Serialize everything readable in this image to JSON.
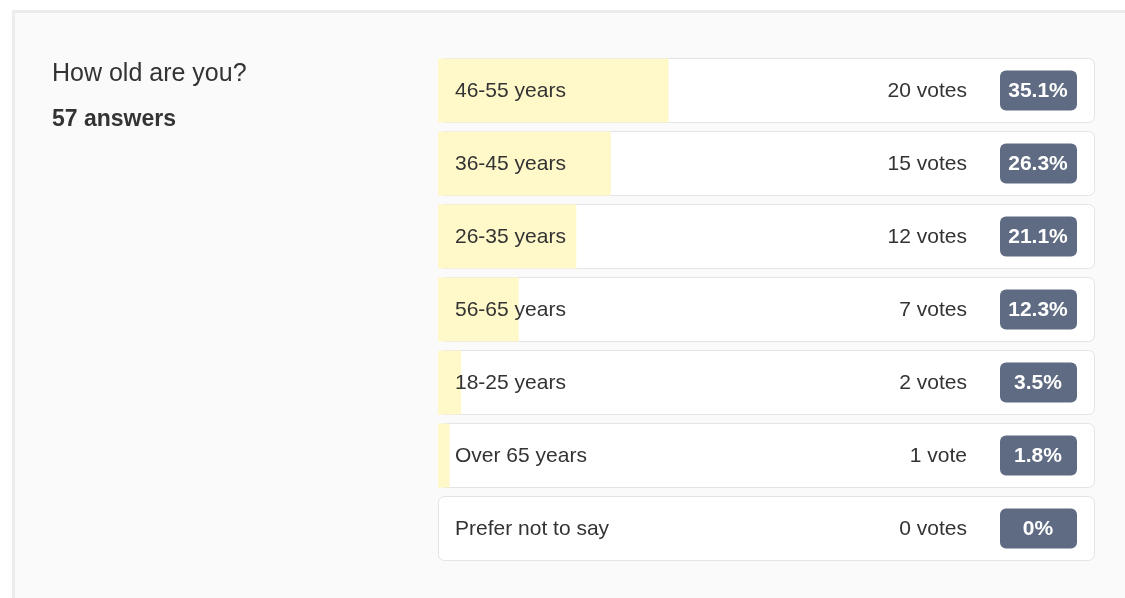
{
  "chart_data": {
    "type": "bar",
    "orientation": "horizontal",
    "title": "How old are you?",
    "subtitle": "57 answers",
    "categories": [
      "46-55 years",
      "36-45 years",
      "26-35 years",
      "56-65 years",
      "18-25 years",
      "Over 65 years",
      "Prefer not to say"
    ],
    "values": [
      20,
      15,
      12,
      7,
      2,
      1,
      0
    ],
    "color": "#fff8c9",
    "value_labels": [
      "20 votes",
      "15 votes",
      "12 votes",
      "7 votes",
      "2 votes",
      "1 vote",
      "0 votes"
    ],
    "annotations": [
      "35.1%",
      "26.3%",
      "21.1%",
      "12.3%",
      "3.5%",
      "1.8%",
      "0%"
    ]
  }
}
